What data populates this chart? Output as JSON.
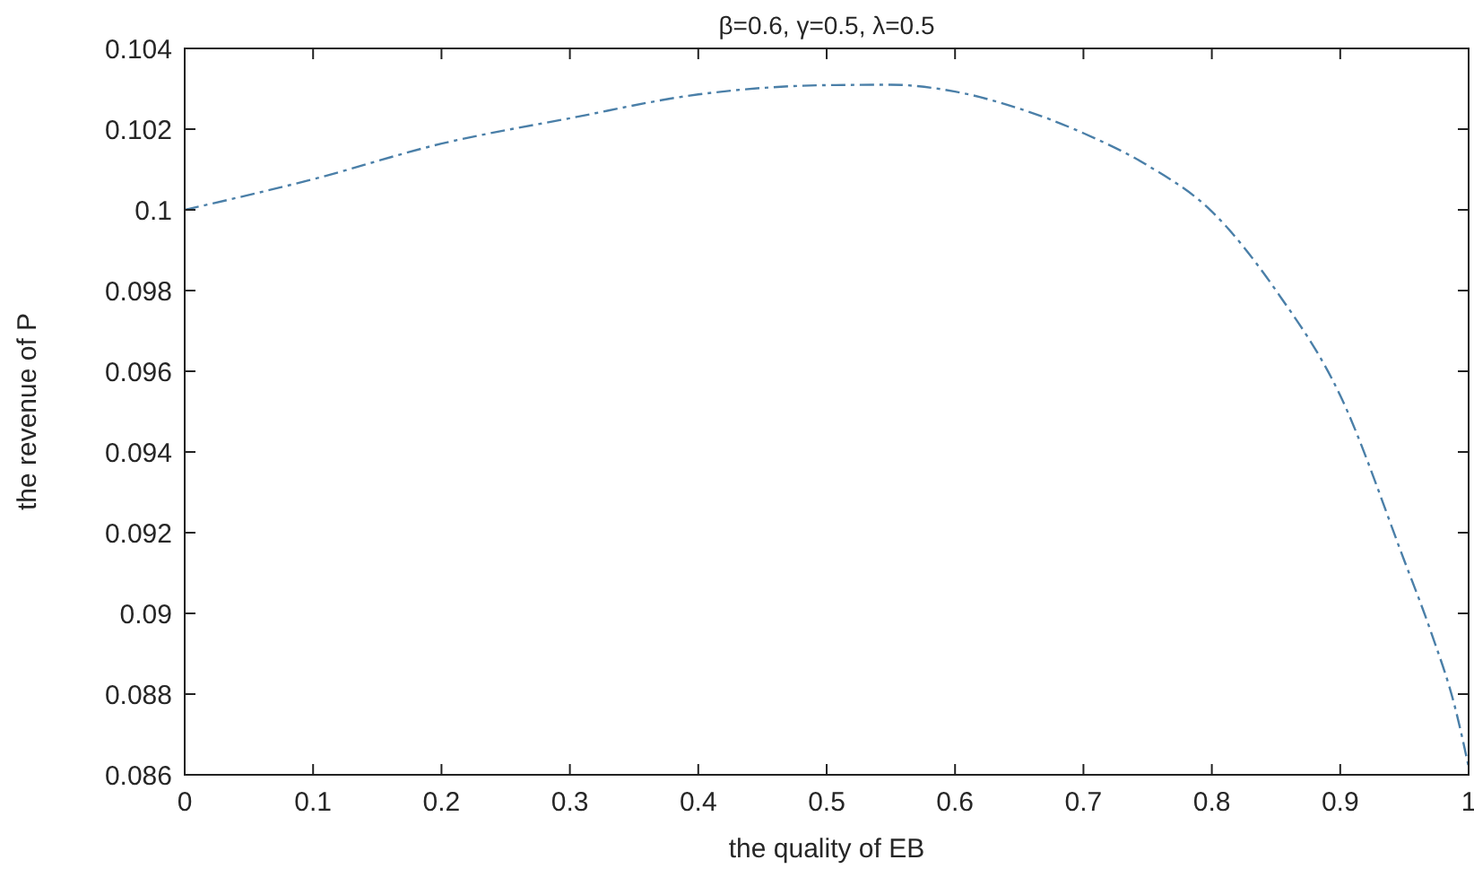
{
  "chart_data": {
    "type": "line",
    "title": "β=0.6, γ=0.5, λ=0.5",
    "xlabel": "the quality of EB",
    "ylabel": "the revenue of P",
    "x": [
      0,
      0.1,
      0.2,
      0.3,
      0.4,
      0.5,
      0.55,
      0.6,
      0.65,
      0.7,
      0.75,
      0.8,
      0.85,
      0.9,
      0.95,
      0.97,
      0.99,
      1
    ],
    "series": [
      {
        "color": "#4a7fa8",
        "values": [
          0.1,
          0.10076,
          0.10164,
          0.10227,
          0.10286,
          0.10309,
          0.1031,
          0.10293,
          0.10251,
          0.1019,
          0.1011,
          0.09996,
          0.098,
          0.0954,
          0.0913,
          0.0896,
          0.0876,
          0.0862
        ]
      }
    ],
    "xlim": [
      0,
      1
    ],
    "xticks": [
      0,
      0.1,
      0.2,
      0.3,
      0.4,
      0.5,
      0.6,
      0.7,
      0.8,
      0.9,
      1
    ],
    "ylim": [
      0.086,
      0.104
    ],
    "yticks": [
      0.086,
      0.088,
      0.09,
      0.092,
      0.094,
      0.096,
      0.098,
      0.1,
      0.102,
      0.104
    ],
    "grid": false,
    "marker": "none",
    "line_style": "dashed"
  }
}
